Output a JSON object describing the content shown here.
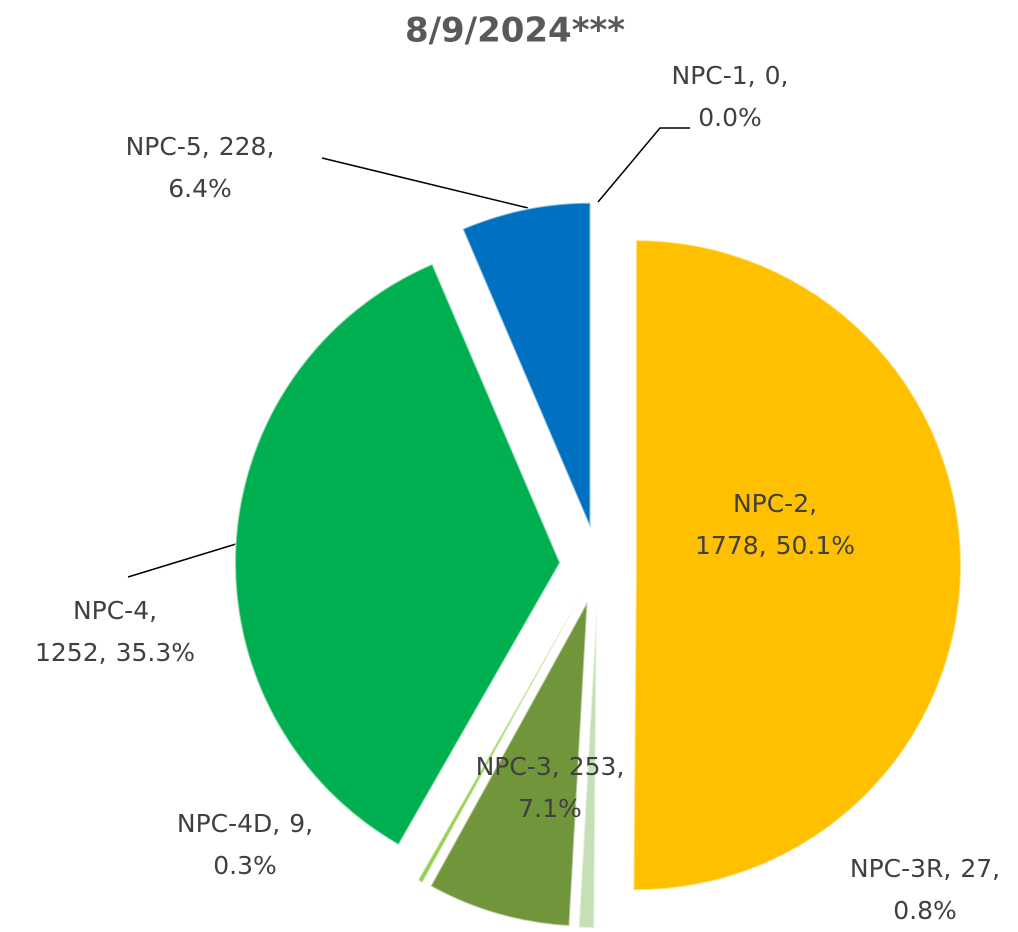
{
  "chart_data": {
    "type": "pie",
    "title": "8/9/2024***",
    "categories": [
      "NPC-1",
      "NPC-2",
      "NPC-3R",
      "NPC-3",
      "NPC-4D",
      "NPC-4",
      "NPC-5"
    ],
    "values": [
      0,
      1778,
      27,
      253,
      9,
      1252,
      228
    ],
    "percentages": [
      0.0,
      50.1,
      0.8,
      7.1,
      0.3,
      35.3,
      6.4
    ],
    "percent_labels": [
      "0.0%",
      "50.1%",
      "0.8%",
      "7.1%",
      "0.3%",
      "35.3%",
      "6.4%"
    ],
    "colors": [
      "#5b9bd5",
      "#ffc000",
      "#c5e0b4",
      "#70953a",
      "#92d050",
      "#00b050",
      "#0070c0"
    ],
    "exploded": true
  }
}
